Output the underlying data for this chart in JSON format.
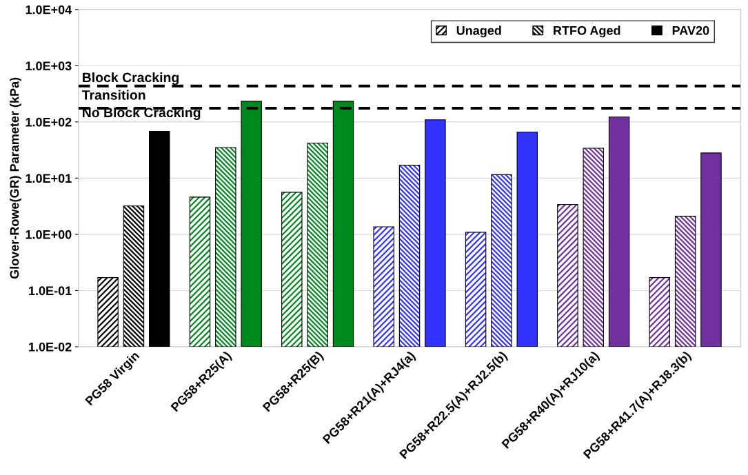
{
  "chart_data": {
    "type": "bar",
    "ylabel": "Glover-Rowe(GR) Parameter (kPa)",
    "log": "y",
    "categories": [
      "PG58 Virgin",
      "PG58+R25(A)",
      "PG58+R25(B)",
      "PG58+R21(A)+RJ4(a)",
      "PG58+R22.5(A)+RJ2.5(b)",
      "PG58+R40(A)+RJ10(a)",
      "PG58+R41.7(A)+RJ8.3(b)"
    ],
    "series": [
      {
        "name": "Unaged",
        "color": "#000000",
        "colors": [
          "#000000",
          "#008a1e",
          "#008a1e",
          "#3333ff",
          "#3333ff",
          "#7030a0",
          "#7030a0"
        ],
        "values": [
          0.17,
          4.6,
          5.6,
          1.36,
          1.09,
          3.4,
          0.17
        ]
      },
      {
        "name": "RTFO Aged",
        "color": "#000000",
        "colors": [
          "#000000",
          "#008a1e",
          "#008a1e",
          "#3333ff",
          "#3333ff",
          "#7030a0",
          "#7030a0"
        ],
        "values": [
          3.2,
          35,
          42,
          17,
          11.5,
          34,
          2.1
        ]
      },
      {
        "name": "PAV20",
        "color": "#000000",
        "colors": [
          "#000000",
          "#008a1e",
          "#008a1e",
          "#3333ff",
          "#3333ff",
          "#7030a0",
          "#7030a0"
        ],
        "values": [
          68,
          233,
          233,
          109,
          66,
          122,
          28
        ]
      }
    ],
    "ylim": [
      0.01,
      10000
    ],
    "yticks": [
      {
        "value": 0.01,
        "label": "1.0E-02"
      },
      {
        "value": 0.1,
        "label": "1.0E-01"
      },
      {
        "value": 1,
        "label": "1.0E+00"
      },
      {
        "value": 10,
        "label": "1.0E+01"
      },
      {
        "value": 100,
        "label": "1.0E+02"
      },
      {
        "value": 1000,
        "label": "1.0E+03"
      },
      {
        "value": 10000,
        "label": "1.0E+04"
      }
    ],
    "ref_lines": [
      {
        "axis": "y",
        "value": 435,
        "color": "#000000",
        "line_style": "dashed"
      },
      {
        "axis": "y",
        "value": 175,
        "color": "#000000",
        "line_style": "dashed"
      }
    ],
    "annotations": [
      "Block Cracking",
      "Transition",
      "No Block Cracking"
    ],
    "grid": "y",
    "legend": "top right"
  }
}
